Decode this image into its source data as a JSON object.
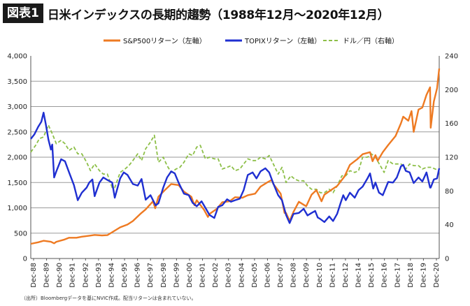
{
  "figure": {
    "badge": "図表1",
    "title": "日米インデックスの長期的趨勢（1988年12月～2020年12月）",
    "source": "（出所）Bloombergデータを基にNVIC作成。配当リターンは含まれていない。"
  },
  "chart_data": {
    "type": "line",
    "x_tick_labels": [
      "Dec-88",
      "Dec-89",
      "Dec-90",
      "Dec-91",
      "Dec-92",
      "Dec-93",
      "Dec-94",
      "Dec-95",
      "Dec-96",
      "Dec-97",
      "Dec-98",
      "Dec-99",
      "Dec-00",
      "Dec-01",
      "Dec-02",
      "Dec-03",
      "Dec-04",
      "Dec-05",
      "Dec-06",
      "Dec-07",
      "Dec-08",
      "Dec-09",
      "Dec-10",
      "Dec-11",
      "Dec-12",
      "Dec-14",
      "Dec-15",
      "Dec-16",
      "Dec-17",
      "Dec-18",
      "Dec-19",
      "Dec-20"
    ],
    "x_range": [
      1988.92,
      2020.92
    ],
    "y_left": {
      "min": 0,
      "max": 4000,
      "ticks": [
        0,
        500,
        1000,
        1500,
        2000,
        2500,
        3000,
        3500,
        4000
      ],
      "tick_labels": [
        "0",
        "500",
        "1,000",
        "1,500",
        "2,000",
        "2,500",
        "3,000",
        "3,500",
        "4,000"
      ]
    },
    "y_right": {
      "min": 0,
      "max": 240,
      "ticks": [
        0,
        40,
        80,
        120,
        160,
        200,
        240
      ],
      "tick_labels": [
        "0",
        "40",
        "80",
        "120",
        "160",
        "200",
        "240"
      ]
    },
    "gridlines": [
      500,
      1000,
      1500,
      2000,
      2500,
      3000,
      3500
    ],
    "grid": true,
    "legend_position": "top",
    "series": [
      {
        "name": "S&P500リターン（左軸）",
        "axis": "left",
        "style": "solid",
        "color": "#ee7a22",
        "points": [
          [
            1988.92,
            290
          ],
          [
            1989.5,
            320
          ],
          [
            1989.92,
            350
          ],
          [
            1990.5,
            330
          ],
          [
            1990.75,
            300
          ],
          [
            1990.92,
            330
          ],
          [
            1991.5,
            370
          ],
          [
            1991.92,
            410
          ],
          [
            1992.5,
            410
          ],
          [
            1992.92,
            430
          ],
          [
            1993.5,
            450
          ],
          [
            1993.92,
            465
          ],
          [
            1994.5,
            455
          ],
          [
            1994.92,
            460
          ],
          [
            1995.5,
            550
          ],
          [
            1995.92,
            615
          ],
          [
            1996.5,
            670
          ],
          [
            1996.92,
            740
          ],
          [
            1997.5,
            880
          ],
          [
            1997.92,
            970
          ],
          [
            1998.5,
            1130
          ],
          [
            1998.67,
            990
          ],
          [
            1998.92,
            1220
          ],
          [
            1999.5,
            1370
          ],
          [
            1999.92,
            1470
          ],
          [
            2000.5,
            1450
          ],
          [
            2000.92,
            1320
          ],
          [
            2001.5,
            1220
          ],
          [
            2001.75,
            1050
          ],
          [
            2001.92,
            1150
          ],
          [
            2002.5,
            960
          ],
          [
            2002.8,
            820
          ],
          [
            2002.92,
            880
          ],
          [
            2003.5,
            980
          ],
          [
            2003.92,
            1110
          ],
          [
            2004.5,
            1130
          ],
          [
            2004.92,
            1210
          ],
          [
            2005.5,
            1200
          ],
          [
            2005.92,
            1250
          ],
          [
            2006.5,
            1280
          ],
          [
            2006.92,
            1420
          ],
          [
            2007.5,
            1510
          ],
          [
            2007.8,
            1550
          ],
          [
            2007.92,
            1470
          ],
          [
            2008.5,
            1280
          ],
          [
            2008.8,
            900
          ],
          [
            2008.92,
            900
          ],
          [
            2009.2,
            740
          ],
          [
            2009.5,
            920
          ],
          [
            2009.92,
            1120
          ],
          [
            2010.5,
            1030
          ],
          [
            2010.92,
            1260
          ],
          [
            2011.3,
            1350
          ],
          [
            2011.7,
            1130
          ],
          [
            2011.92,
            1260
          ],
          [
            2012.5,
            1360
          ],
          [
            2012.92,
            1430
          ],
          [
            2013.5,
            1620
          ],
          [
            2013.92,
            1850
          ],
          [
            2014.5,
            1960
          ],
          [
            2014.92,
            2060
          ],
          [
            2015.5,
            2100
          ],
          [
            2015.7,
            1920
          ],
          [
            2015.92,
            2040
          ],
          [
            2016.1,
            1930
          ],
          [
            2016.5,
            2100
          ],
          [
            2016.92,
            2240
          ],
          [
            2017.5,
            2420
          ],
          [
            2017.92,
            2670
          ],
          [
            2018.1,
            2800
          ],
          [
            2018.5,
            2720
          ],
          [
            2018.75,
            2910
          ],
          [
            2018.92,
            2500
          ],
          [
            2019.3,
            2940
          ],
          [
            2019.6,
            2980
          ],
          [
            2019.92,
            3230
          ],
          [
            2020.2,
            3380
          ],
          [
            2020.25,
            2580
          ],
          [
            2020.5,
            3100
          ],
          [
            2020.75,
            3360
          ],
          [
            2020.92,
            3750
          ]
        ]
      },
      {
        "name": "TOPIXリターン（左軸）",
        "axis": "left",
        "style": "solid",
        "color": "#1f2fd1",
        "points": [
          [
            1988.92,
            2360
          ],
          [
            1989.2,
            2450
          ],
          [
            1989.5,
            2600
          ],
          [
            1989.75,
            2700
          ],
          [
            1989.92,
            2880
          ],
          [
            1990.1,
            2650
          ],
          [
            1990.3,
            2350
          ],
          [
            1990.5,
            2150
          ],
          [
            1990.6,
            2250
          ],
          [
            1990.75,
            1600
          ],
          [
            1990.92,
            1720
          ],
          [
            1991.3,
            1960
          ],
          [
            1991.6,
            1920
          ],
          [
            1991.92,
            1700
          ],
          [
            1992.3,
            1450
          ],
          [
            1992.6,
            1150
          ],
          [
            1992.92,
            1300
          ],
          [
            1993.3,
            1400
          ],
          [
            1993.5,
            1500
          ],
          [
            1993.75,
            1560
          ],
          [
            1993.92,
            1230
          ],
          [
            1994.3,
            1500
          ],
          [
            1994.6,
            1600
          ],
          [
            1994.92,
            1550
          ],
          [
            1995.3,
            1500
          ],
          [
            1995.5,
            1200
          ],
          [
            1995.92,
            1580
          ],
          [
            1996.2,
            1700
          ],
          [
            1996.5,
            1650
          ],
          [
            1996.92,
            1470
          ],
          [
            1997.3,
            1440
          ],
          [
            1997.6,
            1570
          ],
          [
            1997.92,
            1160
          ],
          [
            1998.3,
            1250
          ],
          [
            1998.7,
            1050
          ],
          [
            1998.92,
            1090
          ],
          [
            1999.3,
            1400
          ],
          [
            1999.6,
            1600
          ],
          [
            1999.92,
            1720
          ],
          [
            2000.2,
            1680
          ],
          [
            2000.5,
            1500
          ],
          [
            2000.92,
            1280
          ],
          [
            2001.3,
            1250
          ],
          [
            2001.6,
            1100
          ],
          [
            2001.92,
            1030
          ],
          [
            2002.3,
            1130
          ],
          [
            2002.6,
            1000
          ],
          [
            2002.92,
            860
          ],
          [
            2003.3,
            800
          ],
          [
            2003.6,
            1020
          ],
          [
            2003.92,
            1050
          ],
          [
            2004.3,
            1170
          ],
          [
            2004.6,
            1120
          ],
          [
            2004.92,
            1150
          ],
          [
            2005.3,
            1180
          ],
          [
            2005.6,
            1350
          ],
          [
            2005.92,
            1650
          ],
          [
            2006.3,
            1700
          ],
          [
            2006.6,
            1580
          ],
          [
            2006.92,
            1720
          ],
          [
            2007.3,
            1780
          ],
          [
            2007.6,
            1700
          ],
          [
            2007.92,
            1480
          ],
          [
            2008.3,
            1250
          ],
          [
            2008.6,
            1150
          ],
          [
            2008.92,
            860
          ],
          [
            2009.2,
            700
          ],
          [
            2009.5,
            880
          ],
          [
            2009.92,
            900
          ],
          [
            2010.3,
            980
          ],
          [
            2010.6,
            850
          ],
          [
            2010.92,
            900
          ],
          [
            2011.2,
            940
          ],
          [
            2011.4,
            810
          ],
          [
            2011.6,
            780
          ],
          [
            2011.92,
            720
          ],
          [
            2012.3,
            830
          ],
          [
            2012.6,
            740
          ],
          [
            2012.92,
            880
          ],
          [
            2013.2,
            1100
          ],
          [
            2013.4,
            1250
          ],
          [
            2013.6,
            1150
          ],
          [
            2013.92,
            1300
          ],
          [
            2014.3,
            1200
          ],
          [
            2014.6,
            1350
          ],
          [
            2014.92,
            1420
          ],
          [
            2015.3,
            1580
          ],
          [
            2015.5,
            1680
          ],
          [
            2015.75,
            1380
          ],
          [
            2015.92,
            1500
          ],
          [
            2016.2,
            1300
          ],
          [
            2016.5,
            1250
          ],
          [
            2016.92,
            1510
          ],
          [
            2017.3,
            1500
          ],
          [
            2017.6,
            1600
          ],
          [
            2017.92,
            1820
          ],
          [
            2018.1,
            1850
          ],
          [
            2018.3,
            1730
          ],
          [
            2018.6,
            1700
          ],
          [
            2018.92,
            1490
          ],
          [
            2019.3,
            1600
          ],
          [
            2019.6,
            1520
          ],
          [
            2019.92,
            1700
          ],
          [
            2020.2,
            1400
          ],
          [
            2020.25,
            1400
          ],
          [
            2020.5,
            1560
          ],
          [
            2020.75,
            1580
          ],
          [
            2020.92,
            1780
          ]
        ]
      },
      {
        "name": "ドル／円（右軸）",
        "axis": "right",
        "style": "dashed",
        "color": "#8dbf48",
        "points": [
          [
            1988.92,
            126
          ],
          [
            1989.3,
            134
          ],
          [
            1989.6,
            142
          ],
          [
            1989.92,
            144
          ],
          [
            1990.3,
            158
          ],
          [
            1990.6,
            148
          ],
          [
            1990.92,
            136
          ],
          [
            1991.3,
            140
          ],
          [
            1991.6,
            136
          ],
          [
            1991.92,
            128
          ],
          [
            1992.3,
            132
          ],
          [
            1992.6,
            124
          ],
          [
            1992.92,
            124
          ],
          [
            1993.3,
            114
          ],
          [
            1993.6,
            104
          ],
          [
            1993.92,
            112
          ],
          [
            1994.3,
            104
          ],
          [
            1994.6,
            100
          ],
          [
            1994.92,
            100
          ],
          [
            1995.3,
            84
          ],
          [
            1995.5,
            84
          ],
          [
            1995.92,
            102
          ],
          [
            1996.3,
            106
          ],
          [
            1996.6,
            110
          ],
          [
            1996.92,
            116
          ],
          [
            1997.3,
            124
          ],
          [
            1997.6,
            116
          ],
          [
            1997.92,
            130
          ],
          [
            1998.3,
            138
          ],
          [
            1998.6,
            146
          ],
          [
            1998.92,
            114
          ],
          [
            1999.3,
            120
          ],
          [
            1999.6,
            110
          ],
          [
            1999.92,
            102
          ],
          [
            2000.3,
            106
          ],
          [
            2000.6,
            108
          ],
          [
            2000.92,
            114
          ],
          [
            2001.3,
            124
          ],
          [
            2001.6,
            122
          ],
          [
            2001.92,
            132
          ],
          [
            2002.2,
            134
          ],
          [
            2002.6,
            118
          ],
          [
            2002.92,
            120
          ],
          [
            2003.3,
            118
          ],
          [
            2003.6,
            118
          ],
          [
            2003.92,
            106
          ],
          [
            2004.3,
            108
          ],
          [
            2004.6,
            110
          ],
          [
            2004.92,
            104
          ],
          [
            2005.3,
            106
          ],
          [
            2005.6,
            112
          ],
          [
            2005.92,
            118
          ],
          [
            2006.3,
            116
          ],
          [
            2006.6,
            116
          ],
          [
            2006.92,
            120
          ],
          [
            2007.3,
            118
          ],
          [
            2007.6,
            122
          ],
          [
            2007.92,
            112
          ],
          [
            2008.3,
            100
          ],
          [
            2008.6,
            108
          ],
          [
            2008.92,
            90
          ],
          [
            2009.3,
            98
          ],
          [
            2009.6,
            94
          ],
          [
            2009.92,
            92
          ],
          [
            2010.3,
            92
          ],
          [
            2010.6,
            86
          ],
          [
            2010.92,
            82
          ],
          [
            2011.3,
            82
          ],
          [
            2011.6,
            78
          ],
          [
            2011.92,
            78
          ],
          [
            2012.3,
            82
          ],
          [
            2012.6,
            78
          ],
          [
            2012.92,
            86
          ],
          [
            2013.3,
            98
          ],
          [
            2013.6,
            98
          ],
          [
            2013.92,
            104
          ],
          [
            2014.3,
            102
          ],
          [
            2014.6,
            104
          ],
          [
            2014.92,
            120
          ],
          [
            2015.3,
            120
          ],
          [
            2015.6,
            124
          ],
          [
            2015.92,
            120
          ],
          [
            2016.3,
            110
          ],
          [
            2016.6,
            102
          ],
          [
            2016.92,
            116
          ],
          [
            2017.3,
            112
          ],
          [
            2017.6,
            112
          ],
          [
            2017.92,
            112
          ],
          [
            2018.3,
            106
          ],
          [
            2018.6,
            112
          ],
          [
            2018.92,
            110
          ],
          [
            2019.3,
            110
          ],
          [
            2019.6,
            106
          ],
          [
            2019.92,
            108
          ],
          [
            2020.3,
            108
          ],
          [
            2020.6,
            106
          ],
          [
            2020.92,
            104
          ]
        ]
      }
    ]
  }
}
